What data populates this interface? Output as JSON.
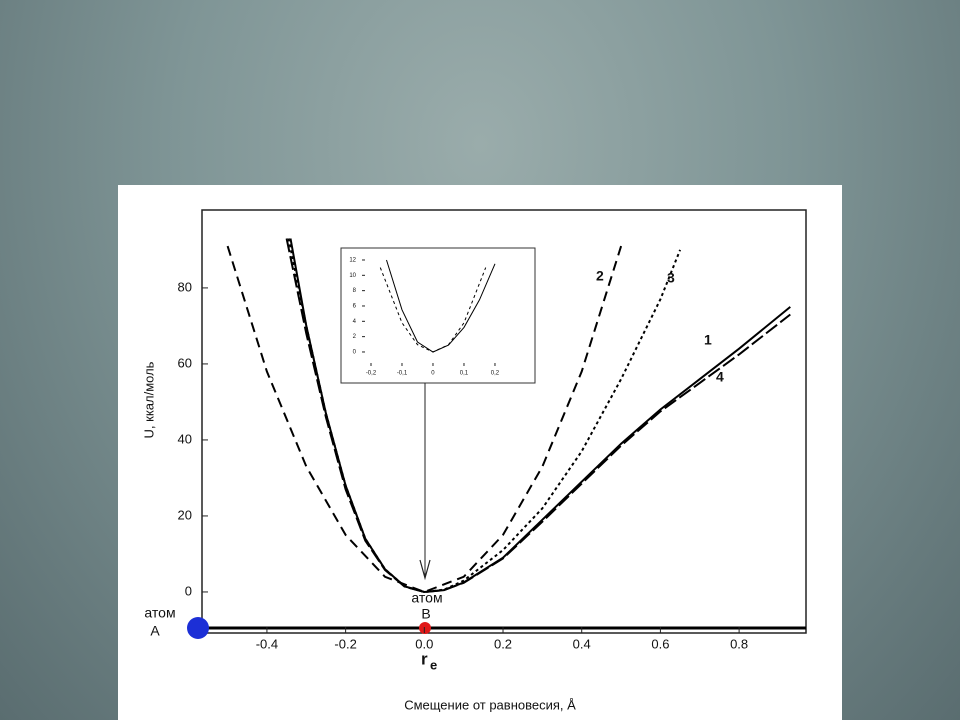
{
  "chart_data": [
    {
      "type": "line",
      "ylabel": "U, ккал/моль",
      "xlabel": "Смещение от равновесия, Å",
      "xlim": [
        -0.565,
        0.97
      ],
      "ylim": [
        -10.8,
        100.5
      ],
      "xticks": [
        -0.4,
        -0.2,
        {
          "value": 0,
          "label": "0.0"
        },
        0.2,
        0.4,
        0.6,
        0.8
      ],
      "yticks": [
        0,
        20,
        40,
        60,
        80
      ],
      "atom_a": [
        "атом",
        "A"
      ],
      "atom_b": [
        "атом",
        "B"
      ],
      "equilibrium": [
        "r",
        "e"
      ],
      "series": [
        {
          "name": "1",
          "color": "#000000",
          "style": "solid",
          "x": [
            -0.34,
            -0.3,
            -0.25,
            -0.2,
            -0.15,
            -0.1,
            -0.05,
            0,
            0.05,
            0.1,
            0.2,
            0.3,
            0.4,
            0.5,
            0.6,
            0.7,
            0.8,
            0.93
          ],
          "values": [
            93,
            70,
            47,
            28,
            14,
            6,
            1.5,
            0,
            0.5,
            2.5,
            9,
            19,
            29,
            39,
            48,
            56,
            64,
            75
          ]
        },
        {
          "name": "2",
          "color": "#000000",
          "style": "dashed",
          "x": [
            -0.5,
            -0.4,
            -0.3,
            -0.2,
            -0.1,
            0,
            0.1,
            0.2,
            0.3,
            0.4,
            0.5
          ],
          "values": [
            91,
            58,
            33,
            15,
            4,
            0,
            4,
            15,
            33,
            58,
            91
          ]
        },
        {
          "name": "3",
          "color": "#000000",
          "style": "dotted",
          "x": [
            -0.345,
            -0.3,
            -0.25,
            -0.2,
            -0.15,
            -0.1,
            -0.05,
            0,
            0.05,
            0.1,
            0.2,
            0.3,
            0.4,
            0.5,
            0.6,
            0.65
          ],
          "values": [
            93,
            70,
            47,
            28,
            14,
            6,
            1.5,
            0,
            0.6,
            3,
            11,
            22,
            37,
            56,
            77,
            90
          ]
        },
        {
          "name": "4",
          "color": "#000000",
          "style": "longdash",
          "x": [
            -0.35,
            -0.3,
            -0.25,
            -0.2,
            -0.15,
            -0.1,
            -0.05,
            0,
            0.05,
            0.1,
            0.2,
            0.3,
            0.4,
            0.5,
            0.6,
            0.7,
            0.8,
            0.93
          ],
          "values": [
            93,
            68,
            46,
            27,
            13.5,
            5.8,
            1.4,
            0,
            0.5,
            2.4,
            8.8,
            18.5,
            28.5,
            38.5,
            47.5,
            55,
            62.5,
            73
          ]
        }
      ]
    },
    {
      "type": "line",
      "xlim": [
        -0.229,
        0.313
      ],
      "ylim": [
        -1.83,
        12.65
      ],
      "xticks": [
        {
          "value": -0.2,
          "label": "-0,2"
        },
        {
          "value": -0.1,
          "label": "-0,1"
        },
        0,
        {
          "value": 0.1,
          "label": "0,1"
        },
        {
          "value": 0.2,
          "label": "0,2"
        }
      ],
      "yticks": [
        0,
        2,
        4,
        6,
        8,
        10,
        12
      ],
      "series": [
        {
          "color": "#000000",
          "style": "solid",
          "x": [
            -0.15,
            -0.1,
            -0.05,
            0,
            0.05,
            0.1,
            0.15,
            0.2
          ],
          "values": [
            12,
            5.5,
            1.3,
            0,
            0.9,
            3.2,
            6.8,
            11.5
          ]
        },
        {
          "color": "#000000",
          "style": "dotted",
          "x": [
            -0.17,
            -0.1,
            -0.05,
            0,
            0.05,
            0.1,
            0.17
          ],
          "values": [
            11,
            3.8,
            0.95,
            0,
            0.95,
            3.8,
            11
          ]
        }
      ]
    }
  ]
}
